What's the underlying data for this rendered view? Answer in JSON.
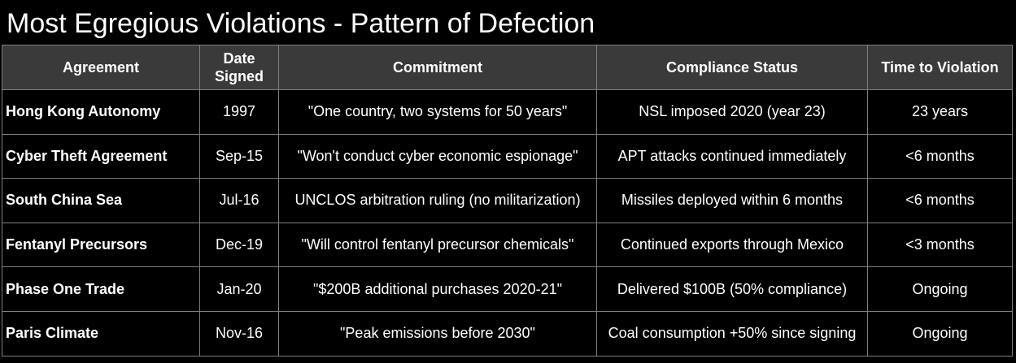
{
  "title": "Most Egregious Violations - Pattern of Defection",
  "table": {
    "headers": {
      "agreement": "Agreement",
      "date_line1": "Date",
      "date_line2": "Signed",
      "commitment": "Commitment",
      "status": "Compliance Status",
      "time": "Time to Violation"
    },
    "rows": [
      {
        "agreement": "Hong Kong Autonomy",
        "date": "1997",
        "commitment": "\"One country, two systems for 50 years\"",
        "status": "NSL imposed 2020 (year 23)",
        "time": "23 years"
      },
      {
        "agreement": "Cyber Theft Agreement",
        "date": "Sep-15",
        "commitment": "\"Won't conduct cyber economic espionage\"",
        "status": "APT attacks continued immediately",
        "time": "<6 months"
      },
      {
        "agreement": "South China Sea",
        "date": "Jul-16",
        "commitment": "UNCLOS arbitration ruling (no militarization)",
        "status": "Missiles deployed within 6 months",
        "time": "<6 months"
      },
      {
        "agreement": "Fentanyl Precursors",
        "date": "Dec-19",
        "commitment": "\"Will control fentanyl precursor chemicals\"",
        "status": "Continued exports through Mexico",
        "time": "<3 months"
      },
      {
        "agreement": "Phase One Trade",
        "date": "Jan-20",
        "commitment": "\"$200B additional purchases 2020-21\"",
        "status": "Delivered $100B (50% compliance)",
        "time": "Ongoing"
      },
      {
        "agreement": "Paris Climate",
        "date": "Nov-16",
        "commitment": "\"Peak emissions before 2030\"",
        "status": "Coal consumption +50% since signing",
        "time": "Ongoing"
      }
    ]
  },
  "colors": {
    "background": "#000000",
    "header_background": "#3a3a3a",
    "border": "#7f7f7f",
    "text": "#ffffff"
  }
}
